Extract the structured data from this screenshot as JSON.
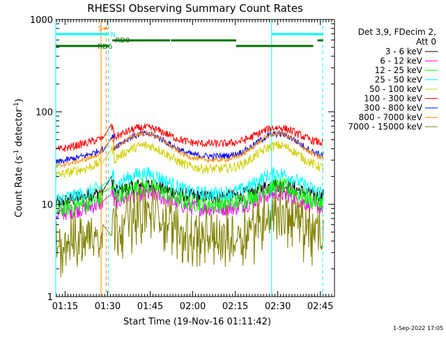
{
  "chart_data": {
    "type": "line",
    "title": "RHESSI Observing Summary Count Rates",
    "xlabel": "Start Time (19-Nov-16 01:11:42)",
    "ylabel_main": "Count Rate (s",
    "ylabel_sup1": "-1",
    "ylabel_mid": " detector",
    "ylabel_sup2": "-1",
    "ylabel_end": ")",
    "y_scale": "log",
    "ylim": [
      1,
      1000
    ],
    "xlim": [
      "01:11:42",
      "02:50:00"
    ],
    "x_ticks": [
      "01:15",
      "01:30",
      "01:45",
      "02:00",
      "02:15",
      "02:30",
      "02:45"
    ],
    "y_ticks": [
      "1",
      "10",
      "100",
      "1000"
    ],
    "legend_header": [
      "Det 3,9, FDecim 2,",
      "Att 0"
    ],
    "legend_position": "right",
    "series": [
      {
        "name": "3 - 6 keV",
        "color": "#000000",
        "base": 12.0,
        "amp": 0.35,
        "noise": 0.18
      },
      {
        "name": "6 - 12 keV",
        "color": "#ff00ff",
        "base": 9.0,
        "amp": 0.45,
        "noise": 0.2
      },
      {
        "name": "12 - 25 keV",
        "color": "#00ff00",
        "base": 10.0,
        "amp": 0.55,
        "noise": 0.22
      },
      {
        "name": "25 - 50 keV",
        "color": "#00ffff",
        "base": 13.0,
        "amp": 0.65,
        "noise": 0.18
      },
      {
        "name": "50 - 100 keV",
        "color": "#d0d000",
        "base": 24.0,
        "amp": 0.8,
        "noise": 0.12
      },
      {
        "name": "100 - 300 keV",
        "color": "#ff0000",
        "base": 45.0,
        "amp": 0.5,
        "noise": 0.1
      },
      {
        "name": "300 - 800 keV",
        "color": "#0000ff",
        "base": 33.0,
        "amp": 0.75,
        "noise": 0.08
      },
      {
        "name": "800 - 7000 keV",
        "color": "#ff8c00",
        "base": 30.0,
        "amp": 0.95,
        "noise": 0.06
      },
      {
        "name": "7000 - 15000 keV",
        "color": "#808000",
        "base": 4.0,
        "amp": 0.9,
        "noise": 0.45
      }
    ],
    "vertical_markers": [
      {
        "time": "01:11:42",
        "color": "#00ffff",
        "style": "solid"
      },
      {
        "time": "01:27:40",
        "color": "#ff8c00",
        "style": "solid"
      },
      {
        "time": "01:29:30",
        "color": "#ff8c00",
        "style": "dashed"
      },
      {
        "time": "01:30:20",
        "color": "#00ffff",
        "style": "dashed"
      },
      {
        "time": "02:27:50",
        "color": "#00ffff",
        "style": "solid"
      },
      {
        "time": "02:45:50",
        "color": "#00ffff",
        "style": "dashed"
      }
    ],
    "flags": [
      {
        "label": "S",
        "color": "#ff8c00",
        "segments": [
          [
            "01:28:30",
            "01:30:00"
          ]
        ]
      },
      {
        "label": "N",
        "color": "#00ffff",
        "segments": [
          [
            "01:11:42",
            "01:30:20"
          ],
          [
            "02:27:50",
            "02:46:00"
          ]
        ]
      },
      {
        "label": "RD0",
        "color": "#007000",
        "segments": [
          [
            "01:31:40",
            "01:52:00"
          ],
          [
            "01:52:20",
            "02:15:20"
          ],
          [
            "02:44:00",
            "02:46:00"
          ]
        ]
      },
      {
        "label": "RD6",
        "color": "#007000",
        "segments": [
          [
            "01:11:42",
            "01:30:20"
          ],
          [
            "02:15:20",
            "02:42:30"
          ]
        ]
      }
    ],
    "timestamp": "1-Sep-2022 17:05"
  }
}
